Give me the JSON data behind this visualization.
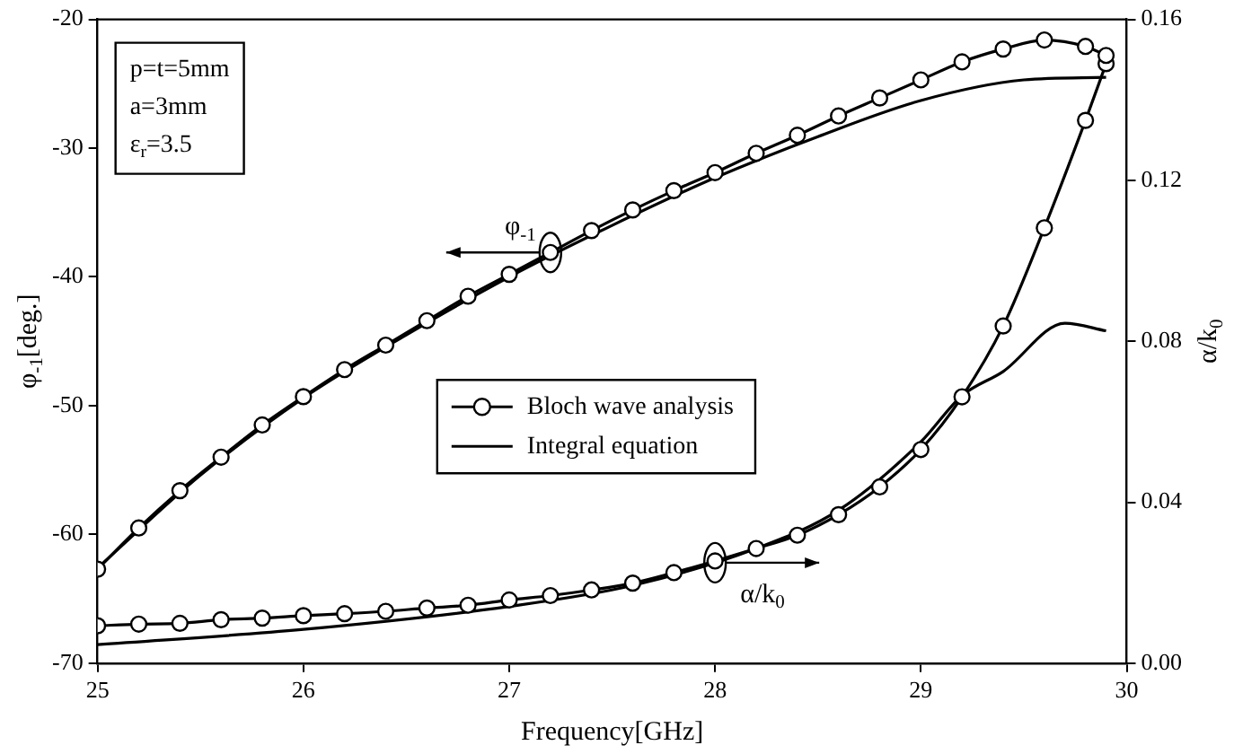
{
  "chart_data": {
    "type": "line",
    "xlabel": "Frequency[GHz]",
    "ylabel": "φ$_{-1}$[deg.]",
    "y2label": "α/k$_{0}$",
    "xlim": [
      25,
      30
    ],
    "xticks": [
      25,
      26,
      27,
      28,
      29,
      30
    ],
    "ylim": [
      -70,
      -20
    ],
    "yticks": [
      -70,
      -60,
      -50,
      -40,
      -30,
      -20
    ],
    "y2lim": [
      0,
      0.16
    ],
    "y2ticks": [
      {
        "value": 0,
        "label": "0.00"
      },
      {
        "value": 0.04,
        "label": "0.04"
      },
      {
        "value": 0.08,
        "label": "0.08"
      },
      {
        "value": 0.12,
        "label": "0.12"
      },
      {
        "value": 0.16,
        "label": "0.16"
      }
    ],
    "legend": "center",
    "series": [
      {
        "name": "Bloch wave analysis",
        "color": "#000000",
        "marker": "circle",
        "x": [
          25,
          25.2,
          25.4,
          25.6,
          25.8,
          26,
          26.2,
          26.4,
          26.6,
          26.8,
          27,
          27.2,
          27.4,
          27.6,
          27.8,
          28,
          28.2,
          28.4,
          28.6,
          28.8,
          29,
          29.2,
          29.4,
          29.6,
          29.8,
          29.9
        ],
        "values": [
          -62.7,
          -59.5,
          -56.6,
          -54.0,
          -51.5,
          -49.3,
          -47.2,
          -45.3,
          -43.4,
          -41.5,
          -39.8,
          -38.1,
          -36.4,
          -34.8,
          -33.3,
          -31.9,
          -30.4,
          -29.0,
          -27.5,
          -26.1,
          -24.7,
          -23.3,
          -22.3,
          -21.6,
          -22.1,
          -22.8
        ]
      },
      {
        "name": "Integral equation",
        "color": "#000000",
        "marker": "none",
        "x": [
          25,
          25.5,
          26,
          26.5,
          27,
          27.5,
          28,
          28.5,
          29,
          29.5,
          29.9
        ],
        "values": [
          -62.6,
          -55.4,
          -49.4,
          -44.5,
          -40.0,
          -36.0,
          -32.3,
          -29.1,
          -26.3,
          -24.7,
          -24.5
        ]
      },
      {
        "color": "#000000",
        "marker": "circle",
        "axis": "y2",
        "x": [
          25,
          25.2,
          25.4,
          25.6,
          25.8,
          26,
          26.2,
          26.4,
          26.6,
          26.8,
          27,
          27.2,
          27.4,
          27.6,
          27.8,
          28,
          28.2,
          28.4,
          28.6,
          28.8,
          29,
          29.2,
          29.4,
          29.6,
          29.8,
          29.9
        ],
        "values": [
          0.0093,
          0.0097,
          0.0099,
          0.0108,
          0.0112,
          0.0118,
          0.0123,
          0.0129,
          0.0137,
          0.0144,
          0.0157,
          0.0168,
          0.0182,
          0.0199,
          0.0225,
          0.0254,
          0.0285,
          0.0318,
          0.0369,
          0.0438,
          0.0531,
          0.0662,
          0.0838,
          0.1082,
          0.1349,
          0.149
        ]
      },
      {
        "color": "#000000",
        "marker": "none",
        "axis": "y2",
        "x": [
          25,
          26,
          27,
          27.6,
          28.2,
          28.6,
          29,
          29.2,
          29.4,
          29.7,
          29.9
        ],
        "values": [
          0.0046,
          0.0084,
          0.0141,
          0.0193,
          0.0285,
          0.038,
          0.055,
          0.0665,
          0.0725,
          0.0845,
          0.0826
        ]
      }
    ],
    "annotations": [
      "p=t=5mm",
      "a=3mm",
      "ε$_{r}$=3.5",
      {
        "text": "φ$_{-1}$",
        "x": 27.2,
        "y": -38.1
      },
      {
        "text": "α/k$_{0}$",
        "x": 28,
        "y": -62.2
      }
    ]
  }
}
